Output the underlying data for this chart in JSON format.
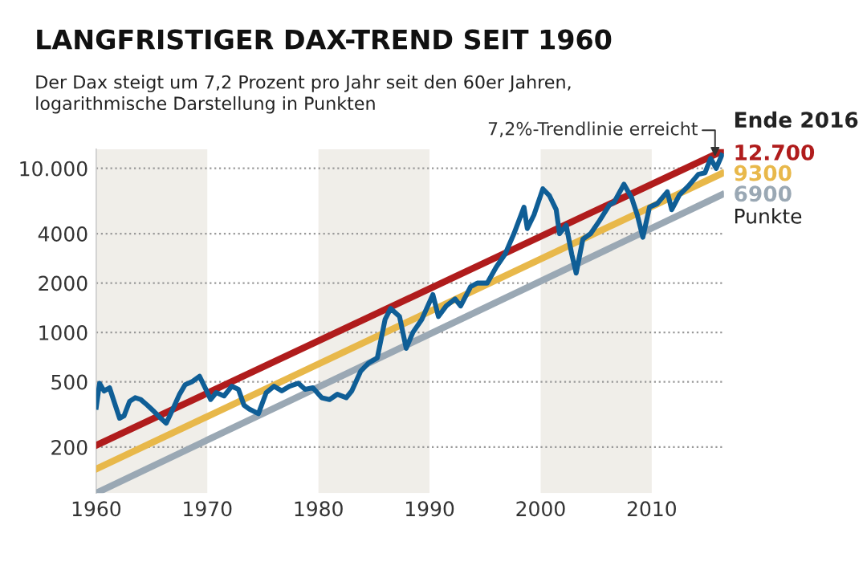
{
  "chart_data": {
    "type": "line",
    "title": "LANGFRISTIGER DAX-TREND SEIT 1960",
    "subtitle": "Der Dax steigt um 7,2 Prozent pro Jahr seit den 60er Jahren,\nlogarithmische Darstellung in Punkten",
    "log": "y",
    "grid": "y",
    "legend": false,
    "xlim": [
      1960,
      2016.5
    ],
    "xticks": [
      1960,
      1970,
      1980,
      1990,
      2000,
      2010
    ],
    "ylim": [
      105,
      13100
    ],
    "yticks": [
      200,
      500,
      1000,
      2000,
      4000,
      {
        "value": 10000,
        "label": "10.000"
      }
    ],
    "bands": [
      {
        "axis": "x",
        "from": 1960,
        "to": 1970,
        "color": "#f0eee9"
      },
      {
        "axis": "x",
        "from": 1980,
        "to": 1990,
        "color": "#f0eee9"
      },
      {
        "axis": "x",
        "from": 2000,
        "to": 2010,
        "color": "#f0eee9"
      }
    ],
    "series": [
      {
        "name": "12.700",
        "color": "#b01c1c",
        "x": [
          1960,
          2016.3
        ],
        "values": [
          205,
          12700
        ]
      },
      {
        "name": "9300",
        "color": "#e8b84a",
        "x": [
          1960,
          2016.3
        ],
        "values": [
          147,
          9300
        ]
      },
      {
        "name": "6900",
        "color": "#9aa8b4",
        "x": [
          1960,
          2016.3
        ],
        "values": [
          105,
          6900
        ]
      },
      {
        "color": "#0f5e96",
        "x": [
          1960,
          1960.3,
          1960.7,
          1961.2,
          1961.6,
          1962.1,
          1962.5,
          1963,
          1963.5,
          1964,
          1964.6,
          1965.2,
          1965.8,
          1966.3,
          1966.8,
          1967.5,
          1968,
          1968.6,
          1969.3,
          1969.8,
          1970.3,
          1970.8,
          1971.5,
          1972.2,
          1972.8,
          1973.3,
          1973.8,
          1974.6,
          1975.3,
          1976,
          1976.7,
          1977.4,
          1978.2,
          1978.8,
          1979.5,
          1980.3,
          1981,
          1981.7,
          1982.5,
          1983,
          1983.8,
          1984.5,
          1985.3,
          1986,
          1986.5,
          1987.3,
          1987.9,
          1988.5,
          1989.3,
          1990.3,
          1990.8,
          1991.5,
          1992.3,
          1992.8,
          1993.7,
          1994.3,
          1995.2,
          1996,
          1996.8,
          1997.6,
          1998.5,
          1998.8,
          1999.4,
          2000.2,
          2000.8,
          2001.4,
          2001.7,
          2002.3,
          2002.8,
          2003.2,
          2003.8,
          2004.5,
          2005.3,
          2006.2,
          2006.6,
          2007.5,
          2008.2,
          2008.7,
          2009.2,
          2009.8,
          2010.5,
          2011.4,
          2011.8,
          2012.5,
          2013.3,
          2014.2,
          2014.8,
          2015.3,
          2015.8,
          2016.3
        ],
        "values": [
          350,
          490,
          440,
          460,
          380,
          300,
          310,
          380,
          400,
          390,
          360,
          330,
          300,
          280,
          330,
          420,
          480,
          500,
          540,
          460,
          390,
          430,
          410,
          470,
          450,
          360,
          340,
          320,
          430,
          470,
          440,
          470,
          490,
          450,
          460,
          400,
          390,
          420,
          400,
          440,
          580,
          650,
          700,
          1200,
          1400,
          1250,
          800,
          1000,
          1200,
          1700,
          1250,
          1450,
          1600,
          1450,
          1900,
          2000,
          2000,
          2500,
          3000,
          4000,
          5800,
          4300,
          5200,
          7500,
          6800,
          5600,
          4000,
          4500,
          3000,
          2300,
          3700,
          4000,
          4800,
          6000,
          6200,
          8000,
          6600,
          5200,
          3800,
          5800,
          6100,
          7200,
          5600,
          6900,
          7800,
          9200,
          9400,
          11500,
          10000,
          12000
        ]
      }
    ],
    "annotations": [
      {
        "text": "7,2%-Trendlinie erreicht",
        "x": 2015.7,
        "y": 11800
      },
      "Ende 2016",
      "Punkte"
    ]
  }
}
